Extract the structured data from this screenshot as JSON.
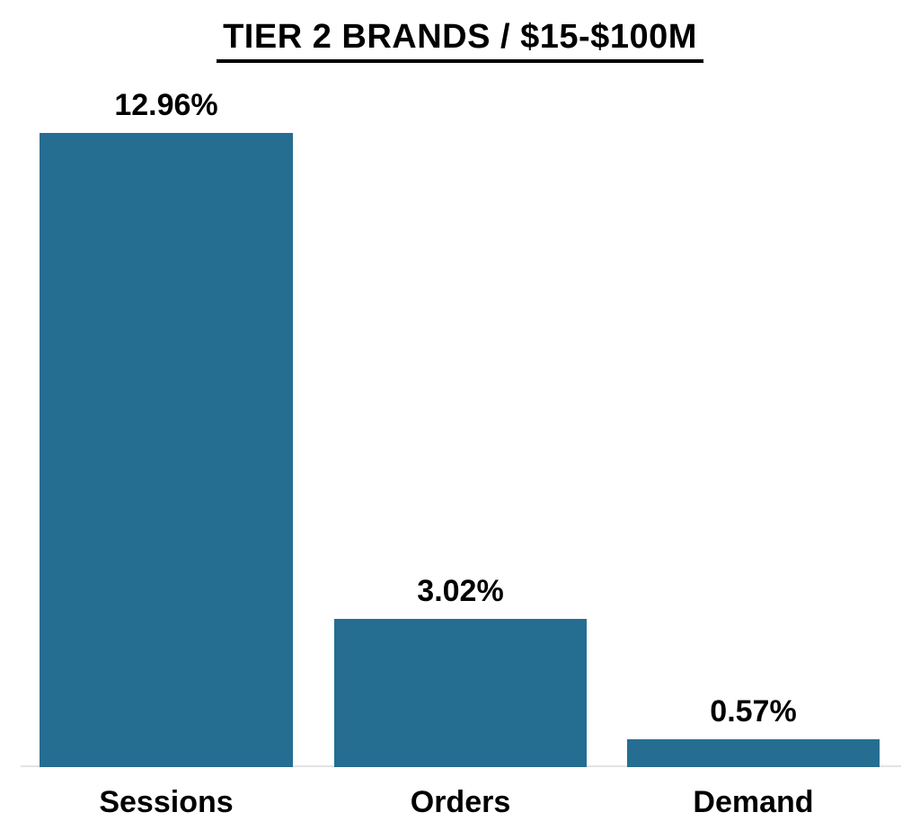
{
  "page": {
    "background": "#ffffff",
    "text_color": "#000000"
  },
  "chart_data": {
    "type": "bar",
    "title": "TIER 2 BRANDS / $15-$100M",
    "title_underlined": true,
    "categories": [
      "Sessions",
      "Orders",
      "Demand"
    ],
    "values": [
      12.96,
      3.02,
      0.57
    ],
    "labels": [
      "12.96%",
      "3.02%",
      "0.57%"
    ],
    "unit": "%",
    "xlabel": "",
    "ylabel": "",
    "ylim": [
      0,
      13.5
    ],
    "grid": false,
    "legend": false,
    "bar_color": "#266d92",
    "axis_line_color": "#e3e3e3",
    "label_color": "#000000"
  },
  "layout_note": "single bar chart, no y-axis, data labels above bars"
}
